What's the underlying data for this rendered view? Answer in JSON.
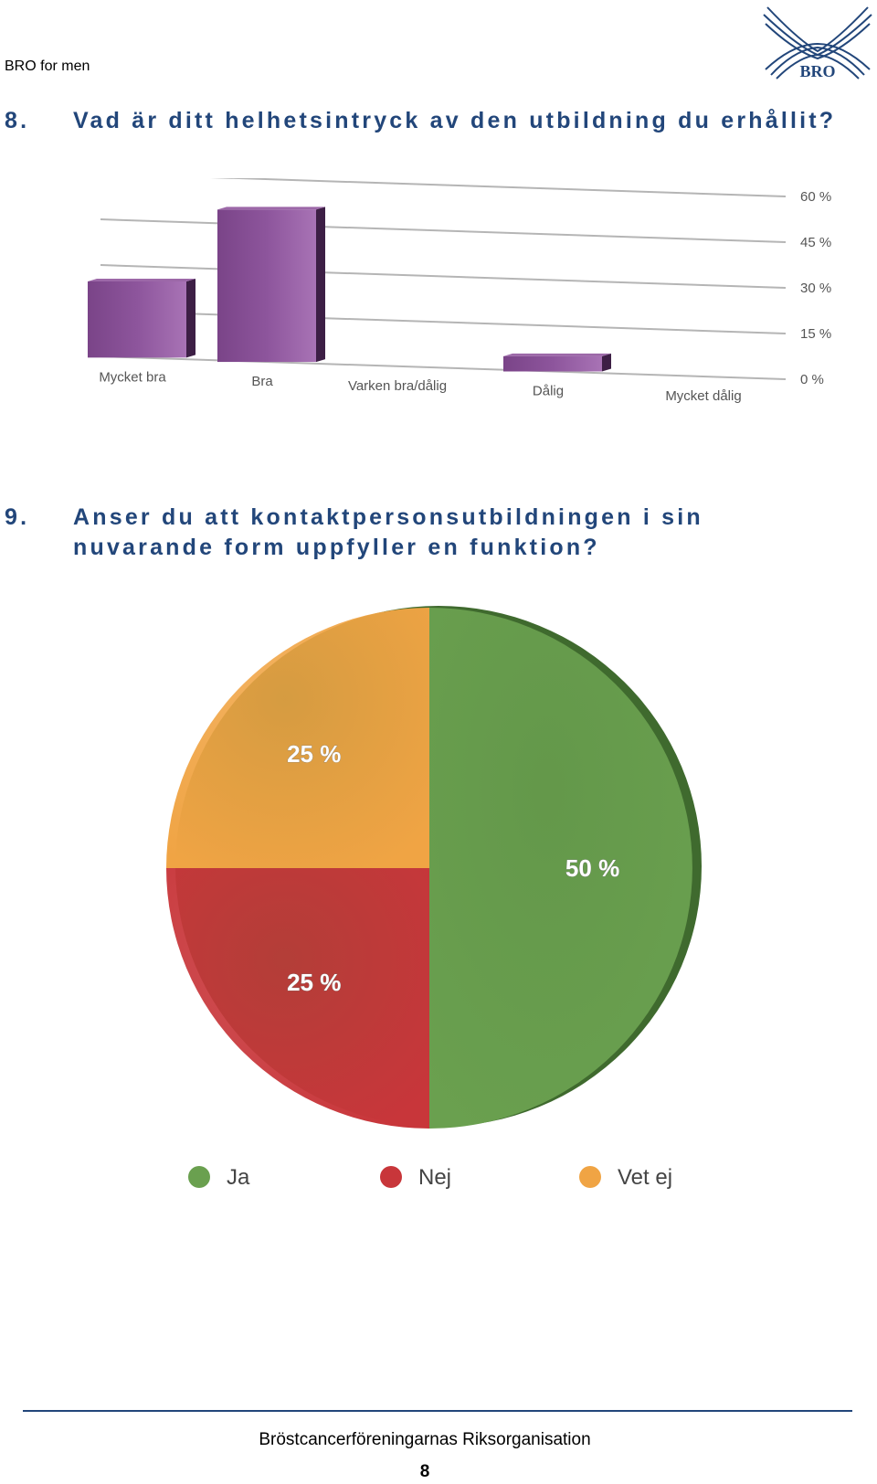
{
  "header": {
    "title": "BRO for men",
    "logo_text": "BRO"
  },
  "question8": {
    "number": "8.",
    "text": "Vad är ditt helhetsintryck av den utbildning du erhållit?"
  },
  "question9": {
    "number": "9.",
    "line1": "Anser du att kontaktpersonsutbildningen i sin",
    "line2": "nuvarande form uppfyller en funktion?"
  },
  "chart_data": [
    {
      "type": "bar",
      "categories": [
        "Mycket bra",
        "Bra",
        "Varken bra/dålig",
        "Dålig",
        "Mycket dålig"
      ],
      "values": [
        25,
        50,
        0,
        5,
        0
      ],
      "yticks": [
        "0 %",
        "15 %",
        "30 %",
        "45 %",
        "60 %"
      ],
      "ylim": [
        0,
        60
      ],
      "grid": true,
      "color": "#8d559c"
    },
    {
      "type": "pie",
      "slices": [
        {
          "label": "Ja",
          "value": 50,
          "display": "50 %",
          "color": "#6aa04f"
        },
        {
          "label": "Nej",
          "value": 25,
          "display": "25 %",
          "color": "#c8363a"
        },
        {
          "label": "Vet ej",
          "value": 25,
          "display": "25 %",
          "color": "#f0a444"
        }
      ],
      "legend_position": "bottom"
    }
  ],
  "footer": {
    "organization": "Bröstcancerföreningarnas Riksorganisation",
    "page_number": "8"
  }
}
